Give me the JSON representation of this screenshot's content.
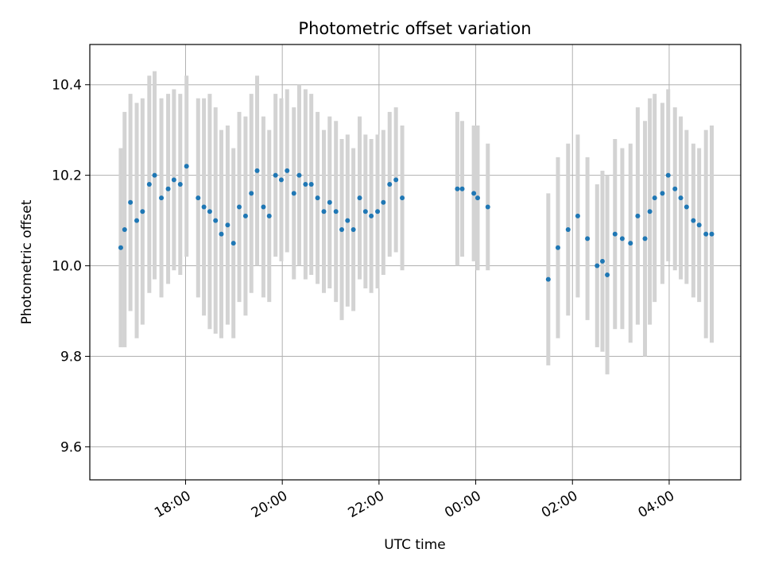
{
  "chart_data": {
    "type": "scatter",
    "title": "Photometric offset variation",
    "xlabel": "UTC time",
    "ylabel": "Photometric offset",
    "x_unit": "hours, UTC (values after 24 are past midnight of the next day)",
    "x_ticks": [
      {
        "value": 18,
        "label": "18:00"
      },
      {
        "value": 20,
        "label": "20:00"
      },
      {
        "value": 22,
        "label": "22:00"
      },
      {
        "value": 24,
        "label": "00:00"
      },
      {
        "value": 26,
        "label": "02:00"
      },
      {
        "value": 28,
        "label": "04:00"
      }
    ],
    "y_ticks": [
      {
        "value": 9.6,
        "label": "9.6"
      },
      {
        "value": 9.8,
        "label": "9.8"
      },
      {
        "value": 10.0,
        "label": "10.0"
      },
      {
        "value": 10.2,
        "label": "10.2"
      },
      {
        "value": 10.4,
        "label": "10.4"
      }
    ],
    "xlim": [
      16.02,
      29.48
    ],
    "ylim": [
      9.527,
      10.489
    ],
    "grid": true,
    "point_color": "#1f77b4",
    "errorbar_color": "#d3d3d3",
    "series": [
      {
        "x": [
          16.66,
          16.74,
          16.86,
          16.99,
          17.11,
          17.25,
          17.36,
          17.5,
          17.64,
          17.76,
          17.89,
          18.02,
          18.26,
          18.38,
          18.5,
          18.62,
          18.74,
          18.87,
          18.99,
          19.11,
          19.24,
          19.36,
          19.48,
          19.61,
          19.73,
          19.86,
          19.98,
          20.1,
          20.24,
          20.35,
          20.48,
          20.6,
          20.73,
          20.86,
          20.98,
          21.11,
          21.23,
          21.35,
          21.47,
          21.6,
          21.72,
          21.84,
          21.97,
          22.09,
          22.22,
          22.35,
          22.48,
          23.62,
          23.72,
          23.96,
          24.04,
          24.25,
          25.5,
          25.7,
          25.91,
          26.11,
          26.31,
          26.51,
          26.62,
          26.72,
          26.88,
          27.03,
          27.2,
          27.35,
          27.5,
          27.6,
          27.7,
          27.86,
          27.98,
          28.12,
          28.24,
          28.36,
          28.5,
          28.62,
          28.76,
          28.88
        ],
        "y": [
          10.04,
          10.08,
          10.14,
          10.1,
          10.12,
          10.18,
          10.2,
          10.15,
          10.17,
          10.19,
          10.18,
          10.22,
          10.15,
          10.13,
          10.12,
          10.1,
          10.07,
          10.09,
          10.05,
          10.13,
          10.11,
          10.16,
          10.21,
          10.13,
          10.11,
          10.2,
          10.19,
          10.21,
          10.16,
          10.2,
          10.18,
          10.18,
          10.15,
          10.12,
          10.14,
          10.12,
          10.08,
          10.1,
          10.08,
          10.15,
          10.12,
          10.11,
          10.12,
          10.14,
          10.18,
          10.19,
          10.15,
          10.17,
          10.17,
          10.16,
          10.15,
          10.13,
          9.97,
          10.04,
          10.08,
          10.11,
          10.06,
          10.0,
          10.01,
          9.98,
          10.07,
          10.06,
          10.05,
          10.11,
          10.06,
          10.12,
          10.15,
          10.16,
          10.2,
          10.17,
          10.15,
          10.13,
          10.1,
          10.09,
          10.07,
          10.07
        ],
        "error": [
          0.22,
          0.26,
          0.24,
          0.26,
          0.25,
          0.24,
          0.23,
          0.22,
          0.21,
          0.2,
          0.2,
          0.2,
          0.22,
          0.24,
          0.26,
          0.25,
          0.23,
          0.22,
          0.21,
          0.21,
          0.22,
          0.22,
          0.21,
          0.2,
          0.19,
          0.18,
          0.18,
          0.18,
          0.19,
          0.2,
          0.21,
          0.2,
          0.19,
          0.18,
          0.19,
          0.2,
          0.2,
          0.19,
          0.18,
          0.18,
          0.17,
          0.17,
          0.17,
          0.16,
          0.16,
          0.16,
          0.16,
          0.17,
          0.15,
          0.15,
          0.16,
          0.14,
          0.19,
          0.2,
          0.19,
          0.18,
          0.18,
          0.18,
          0.2,
          0.22,
          0.21,
          0.2,
          0.22,
          0.24,
          0.26,
          0.25,
          0.23,
          0.2,
          0.19,
          0.18,
          0.18,
          0.17,
          0.17,
          0.17,
          0.23,
          0.24
        ]
      }
    ]
  }
}
